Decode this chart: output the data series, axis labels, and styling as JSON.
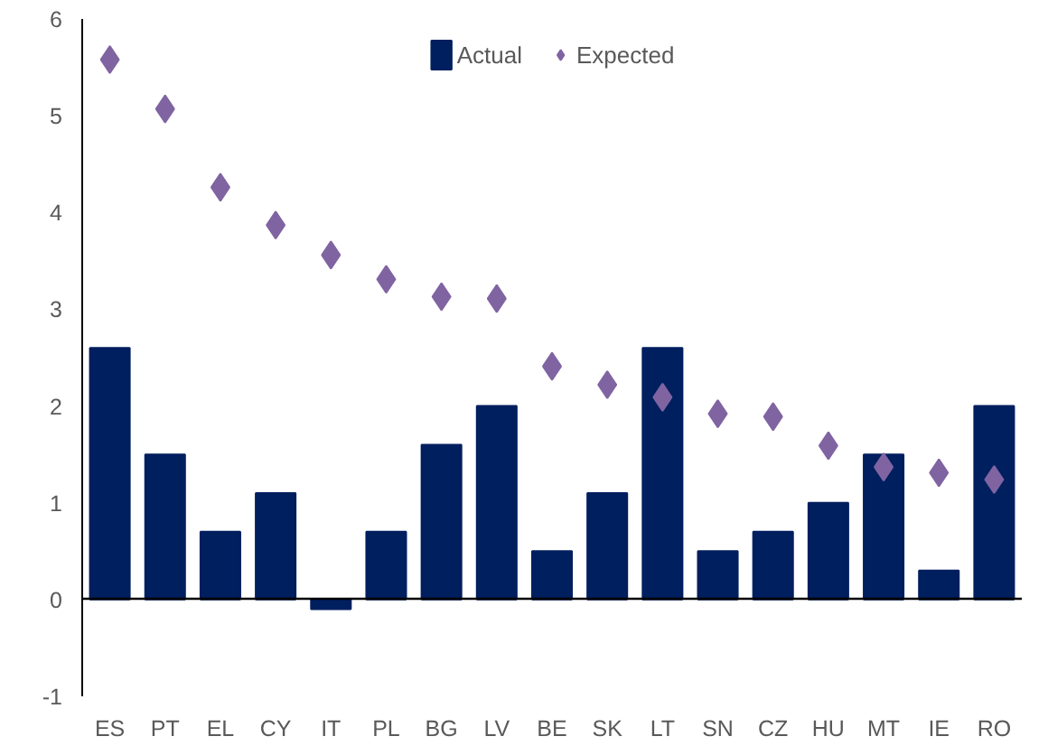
{
  "chart_data": {
    "type": "bar",
    "categories": [
      "ES",
      "PT",
      "EL",
      "CY",
      "IT",
      "PL",
      "BG",
      "LV",
      "BE",
      "SK",
      "LT",
      "SN",
      "CZ",
      "HU",
      "MT",
      "IE",
      "RO"
    ],
    "series": [
      {
        "name": "Actual",
        "color": "#001f5f",
        "values": [
          2.6,
          1.5,
          0.7,
          1.1,
          -0.1,
          0.7,
          1.6,
          2.0,
          0.5,
          1.1,
          2.6,
          0.5,
          0.7,
          1.0,
          1.5,
          0.3,
          2.0
        ]
      },
      {
        "name": "Expected",
        "type": "scatter",
        "marker": "diamond",
        "color": "#8064a2",
        "values": [
          5.58,
          5.07,
          4.26,
          3.87,
          3.56,
          3.31,
          3.13,
          3.11,
          2.41,
          2.22,
          2.09,
          1.92,
          1.89,
          1.59,
          1.37,
          1.31,
          1.24
        ]
      }
    ],
    "ylim": [
      -1,
      6
    ],
    "yticks": [
      -1,
      0,
      1,
      2,
      3,
      4,
      5,
      6
    ],
    "legend": "top"
  }
}
